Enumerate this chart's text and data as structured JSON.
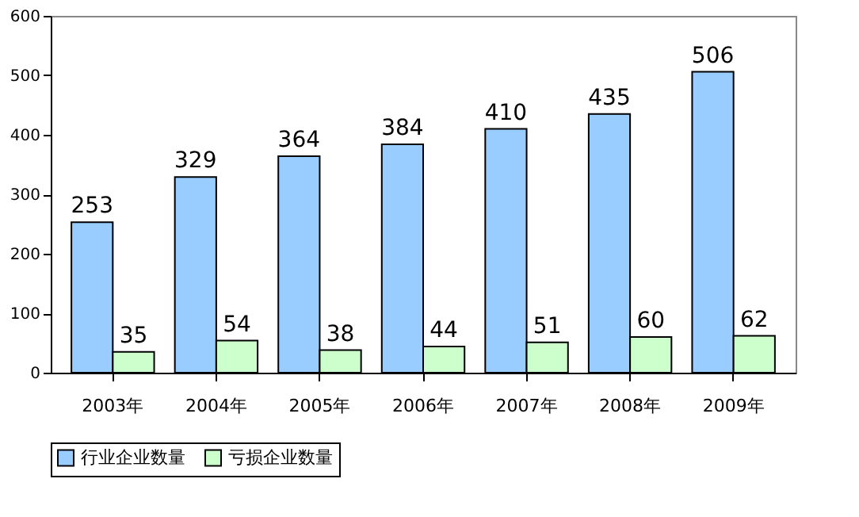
{
  "chart_data": {
    "type": "bar",
    "categories": [
      "2003年",
      "2004年",
      "2005年",
      "2006年",
      "2007年",
      "2008年",
      "2009年"
    ],
    "series": [
      {
        "name": "行业企业数量",
        "color": "#99ccff",
        "values": [
          253,
          329,
          364,
          384,
          410,
          435,
          506
        ]
      },
      {
        "name": "亏损企业数量",
        "color": "#ccffcc",
        "values": [
          35,
          54,
          38,
          44,
          51,
          60,
          62
        ]
      }
    ],
    "ylim": [
      0,
      600
    ],
    "yticks": [
      0,
      100,
      200,
      300,
      400,
      500,
      600
    ],
    "data_labels": true,
    "grid": false,
    "legend": "bottom"
  }
}
